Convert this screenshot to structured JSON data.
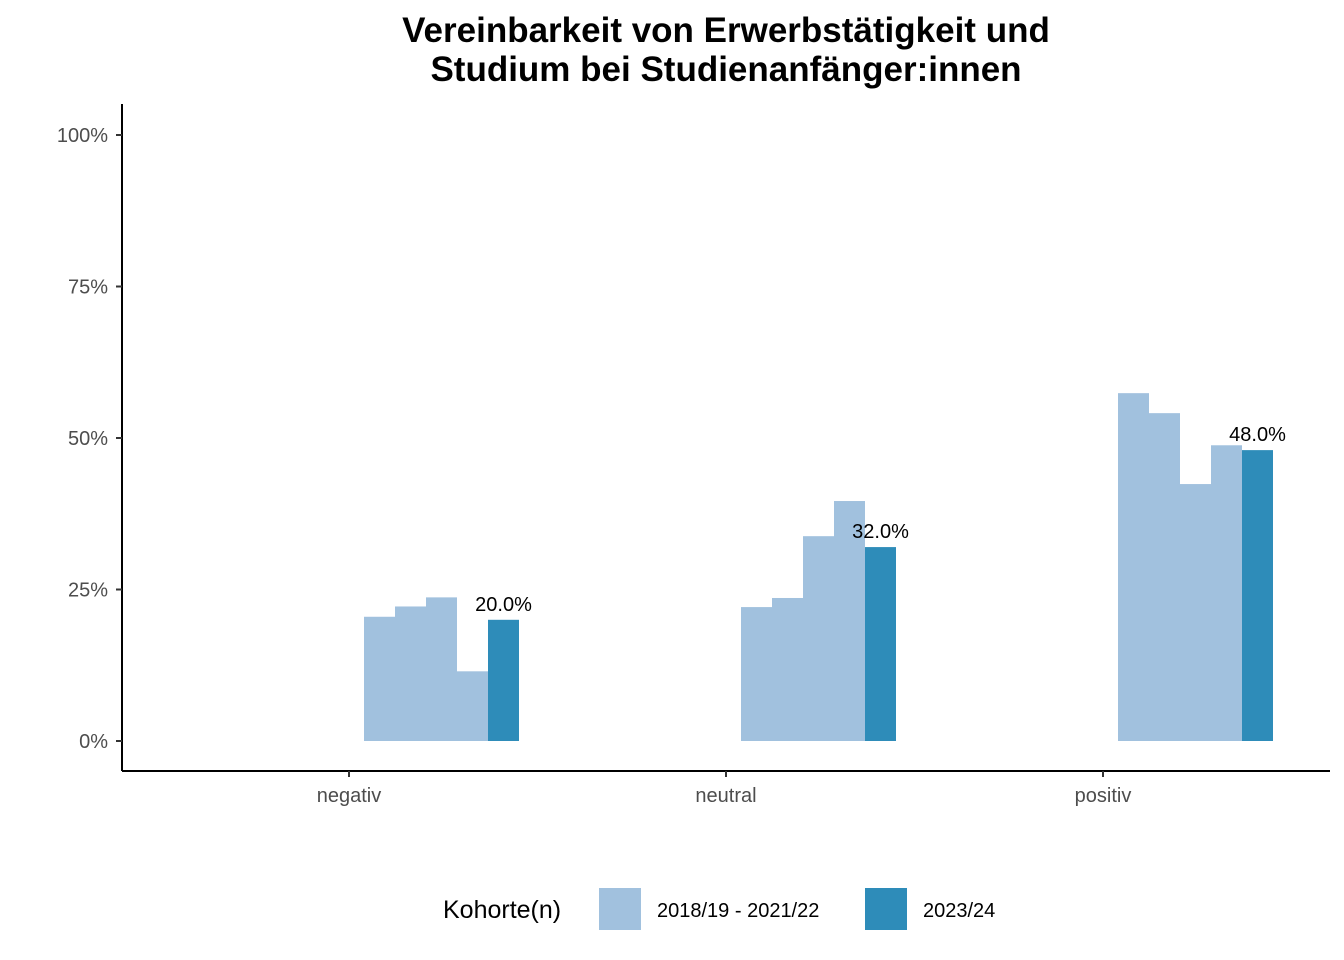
{
  "chart_data": {
    "type": "bar",
    "title_lines": [
      "Vereinbarkeit von Erwerbstätigkeit und",
      "Studium bei Studienanfänger:innen"
    ],
    "xlabel": "",
    "ylabel": "",
    "categories": [
      "negativ",
      "neutral",
      "positiv"
    ],
    "ylim": [
      0,
      1.05
    ],
    "yticks": [
      0,
      0.25,
      0.5,
      0.75,
      1.0
    ],
    "ytick_labels": [
      "0%",
      "25%",
      "50%",
      "75%",
      "100%"
    ],
    "series": [
      {
        "name": "2018/19 - 2021/22",
        "color": "#a1c1de",
        "values": [
          [
            0.205,
            0.222,
            0.237,
            0.115
          ],
          [
            0.221,
            0.236,
            0.338,
            0.396
          ],
          [
            0.574,
            0.541,
            0.424,
            0.488
          ]
        ]
      },
      {
        "name": "2023/24",
        "color": "#2e8cb9",
        "values": [
          0.2,
          0.32,
          0.48
        ],
        "labels": [
          "20.0%",
          "32.0%",
          "48.0%"
        ]
      }
    ],
    "legend": {
      "title": "Kohorte(n)",
      "position": "bottom",
      "entries": [
        "2018/19 - 2021/22",
        "2023/24"
      ]
    },
    "grid": false
  }
}
